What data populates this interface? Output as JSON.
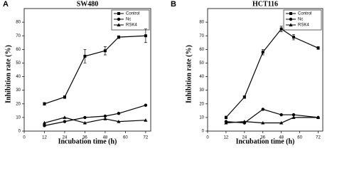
{
  "chart_data": [
    {
      "type": "line",
      "panel_label": "A",
      "title": "SW480",
      "x_label": "Incubation time (h)",
      "y_label": "Inhibition rate (%)",
      "x": [
        12,
        24,
        36,
        48,
        56,
        72
      ],
      "xlim": [
        0,
        75
      ],
      "xticks": [
        0,
        12,
        24,
        36,
        48,
        60,
        72
      ],
      "ylim": [
        0,
        90
      ],
      "yticks": [
        0,
        10,
        20,
        30,
        40,
        50,
        60,
        70,
        80
      ],
      "legend": "upper right",
      "series": [
        {
          "name": "Control",
          "color": "#000000",
          "marker": "square",
          "values": [
            20,
            25,
            55,
            59,
            69,
            70
          ],
          "errors": [
            1,
            1,
            5,
            3,
            1,
            5
          ]
        },
        {
          "name": "Nc",
          "color": "#000000",
          "marker": "circle",
          "values": [
            4,
            7,
            10,
            11,
            13,
            19
          ]
        },
        {
          "name": "RSK4",
          "color": "#000000",
          "marker": "triangle",
          "values": [
            6,
            10,
            6,
            9,
            7,
            8
          ]
        }
      ]
    },
    {
      "type": "line",
      "panel_label": "B",
      "title": "HCT116",
      "x_label": "Incubation time (h)",
      "y_label": "Inhibition rate (%)",
      "x": [
        12,
        24,
        36,
        48,
        56,
        72
      ],
      "xlim": [
        0,
        75
      ],
      "xticks": [
        0,
        12,
        24,
        36,
        48,
        60,
        72
      ],
      "ylim": [
        0,
        90
      ],
      "yticks": [
        0,
        10,
        20,
        30,
        40,
        50,
        60,
        70,
        80
      ],
      "legend": "upper right",
      "series": [
        {
          "name": "Control",
          "color": "#000000",
          "marker": "square",
          "values": [
            10,
            25,
            58,
            75,
            69,
            61
          ],
          "errors": [
            1,
            1,
            2,
            2,
            2,
            1
          ]
        },
        {
          "name": "Nc",
          "color": "#000000",
          "marker": "circle",
          "values": [
            7,
            6,
            16,
            12,
            12,
            10
          ]
        },
        {
          "name": "RSK4",
          "color": "#000000",
          "marker": "triangle",
          "values": [
            6,
            7,
            6,
            6,
            10,
            10
          ]
        }
      ]
    }
  ]
}
